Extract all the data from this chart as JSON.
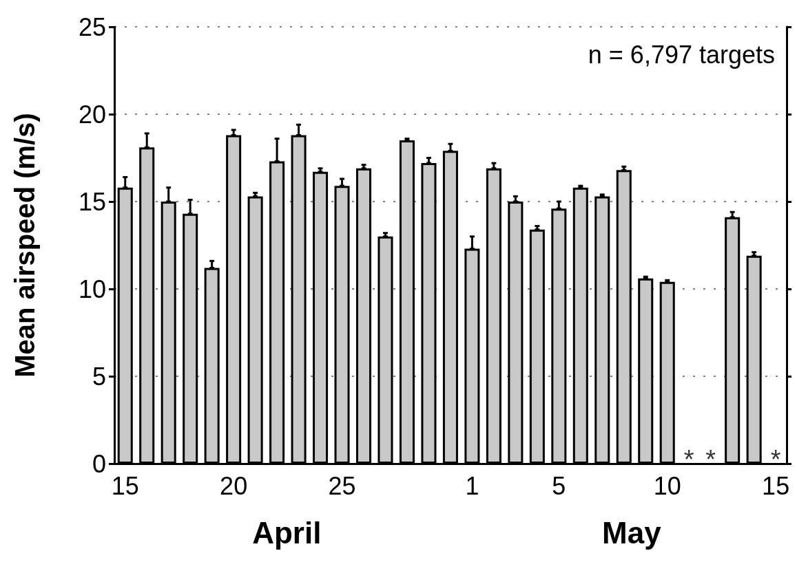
{
  "chart_data": {
    "type": "bar",
    "ylabel": "Mean airspeed (m/s)",
    "categories": [
      "15",
      null,
      null,
      null,
      null,
      "20",
      null,
      null,
      null,
      null,
      "25",
      null,
      null,
      null,
      null,
      null,
      "1",
      null,
      null,
      null,
      "5",
      null,
      null,
      null,
      null,
      "10",
      null,
      null,
      null,
      null,
      "15"
    ],
    "series": [
      {
        "color": "#c8c8c8",
        "values": [
          15.8,
          18.1,
          15.0,
          14.3,
          11.2,
          18.8,
          15.3,
          17.3,
          18.8,
          16.7,
          15.9,
          16.9,
          13.0,
          18.5,
          17.2,
          17.9,
          12.3,
          16.9,
          15.0,
          13.4,
          14.6,
          15.8,
          15.3,
          16.8,
          10.6,
          10.4,
          null,
          null,
          14.1,
          11.9,
          null
        ],
        "errors": [
          [
            15.8,
            16.4
          ],
          [
            18.1,
            18.9
          ],
          [
            15.0,
            15.8
          ],
          [
            14.3,
            15.1
          ],
          [
            11.2,
            11.6
          ],
          [
            18.8,
            19.1
          ],
          [
            15.3,
            15.5
          ],
          [
            17.3,
            18.6
          ],
          [
            18.8,
            19.4
          ],
          [
            16.7,
            16.9
          ],
          [
            15.9,
            16.3
          ],
          [
            16.9,
            17.1
          ],
          [
            13.0,
            13.2
          ],
          [
            18.5,
            18.6
          ],
          [
            17.2,
            17.5
          ],
          [
            17.9,
            18.3
          ],
          [
            12.3,
            13.0
          ],
          [
            16.9,
            17.2
          ],
          [
            15.0,
            15.3
          ],
          [
            13.4,
            13.6
          ],
          [
            14.6,
            15.0
          ],
          [
            15.8,
            15.9
          ],
          [
            15.3,
            15.4
          ],
          [
            16.8,
            17.0
          ],
          [
            10.6,
            10.7
          ],
          [
            10.4,
            10.5
          ],
          null,
          null,
          [
            14.1,
            14.4
          ],
          [
            11.9,
            12.1
          ],
          null
        ]
      }
    ],
    "annotations": [
      "n = 6,797 targets",
      "April",
      "May",
      "*",
      "*",
      "*"
    ],
    "ylim": [
      0,
      25
    ],
    "yticks": [
      0,
      5,
      10,
      15,
      20,
      25
    ],
    "grid": "y"
  }
}
